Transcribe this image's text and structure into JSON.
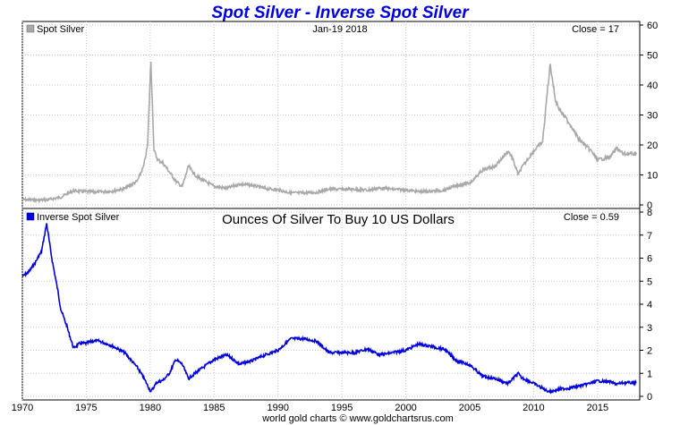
{
  "chart_data": [
    {
      "type": "line",
      "title": "Spot Silver - Inverse Spot Silver",
      "date_label": "Jan-19  2018",
      "series": [
        {
          "name": "Spot Silver",
          "color": "#a8a8a8",
          "close_label": "Close = 17",
          "x": [
            1970,
            1971,
            1972,
            1973,
            1974,
            1975,
            1976,
            1977,
            1978,
            1979,
            1979.5,
            1979.8,
            1980.05,
            1980.3,
            1980.6,
            1981,
            1982,
            1982.5,
            1983,
            1983.5,
            1984,
            1985,
            1986,
            1987,
            1988,
            1989,
            1990,
            1991,
            1992,
            1993,
            1994,
            1995,
            1996,
            1997,
            1998,
            1999,
            2000,
            2001,
            2002,
            2003,
            2004,
            2005,
            2006,
            2007,
            2008,
            2008.3,
            2008.8,
            2009,
            2010,
            2010.7,
            2011.1,
            2011.3,
            2011.7,
            2012,
            2012.5,
            2013,
            2013.5,
            2014,
            2014.5,
            2015,
            2016,
            2016.5,
            2017,
            2018.05
          ],
          "y": [
            1.8,
            1.6,
            1.7,
            2.6,
            4.7,
            4.4,
            4.3,
            4.6,
            5.4,
            8,
            13,
            20,
            48,
            18,
            15,
            14,
            8,
            6,
            13,
            10,
            8.5,
            6.2,
            5.5,
            7,
            6.5,
            5.5,
            5,
            4,
            4,
            4.2,
            5.3,
            5.2,
            5.2,
            4.9,
            5.6,
            5.2,
            5,
            4.4,
            4.6,
            4.9,
            6.5,
            7.3,
            11.5,
            13,
            18,
            16,
            10,
            12,
            18,
            21,
            39,
            47,
            35,
            32,
            29,
            26,
            22,
            20,
            18,
            15,
            16,
            19,
            17,
            17
          ]
        },
        {
          "name": "Inverse Spot Silver",
          "color": "#0000e0",
          "close_label": "Close = 0.59",
          "subtitle": "Ounces Of Silver To Buy 10 US Dollars",
          "x": [
            1970,
            1970.5,
            1971,
            1971.5,
            1971.9,
            1972.3,
            1972.8,
            1973,
            1973.5,
            1974,
            1974.5,
            1975,
            1975.5,
            1976,
            1977,
            1978,
            1979,
            1979.5,
            1980.05,
            1980.5,
            1981,
            1981.5,
            1982,
            1982.5,
            1983,
            1983.5,
            1984,
            1985,
            1986,
            1987,
            1988,
            1989,
            1990,
            1991,
            1992,
            1993,
            1994,
            1995,
            1996,
            1997,
            1998,
            1999,
            2000,
            2001,
            2002,
            2003,
            2004,
            2005,
            2006,
            2007,
            2008,
            2008.8,
            2009,
            2010,
            2011,
            2011.3,
            2012,
            2013,
            2014,
            2015,
            2016,
            2016.5,
            2017,
            2018.05
          ],
          "y": [
            5.2,
            5.4,
            5.8,
            6.3,
            7.5,
            6,
            4.5,
            3.8,
            3,
            2.1,
            2.3,
            2.3,
            2.4,
            2.4,
            2.2,
            1.9,
            1.25,
            0.8,
            0.2,
            0.6,
            0.7,
            1,
            1.6,
            1.4,
            0.77,
            1,
            1.2,
            1.6,
            1.8,
            1.4,
            1.55,
            1.8,
            2,
            2.5,
            2.5,
            2.4,
            1.9,
            1.9,
            1.9,
            2.05,
            1.8,
            1.9,
            2,
            2.27,
            2.17,
            2.04,
            1.54,
            1.37,
            0.87,
            0.77,
            0.56,
            1,
            0.83,
            0.56,
            0.26,
            0.21,
            0.31,
            0.38,
            0.5,
            0.67,
            0.63,
            0.53,
            0.59,
            0.59
          ]
        }
      ],
      "x_ticks": [
        "1970",
        "1975",
        "1980",
        "1985",
        "1990",
        "1995",
        "2000",
        "2005",
        "2010",
        "2015"
      ],
      "x_range": [
        1970,
        2018.3
      ],
      "top_panel": {
        "ylim": [
          0,
          60
        ],
        "y_ticks": [
          "0",
          "10",
          "20",
          "30",
          "40",
          "50",
          "60"
        ]
      },
      "bottom_panel": {
        "ylim": [
          0,
          8
        ],
        "y_ticks": [
          "0",
          "1",
          "2",
          "3",
          "4",
          "5",
          "6",
          "7",
          "8"
        ]
      },
      "grid": true,
      "footer": "world gold charts © www.goldchartsrus.com"
    }
  ]
}
